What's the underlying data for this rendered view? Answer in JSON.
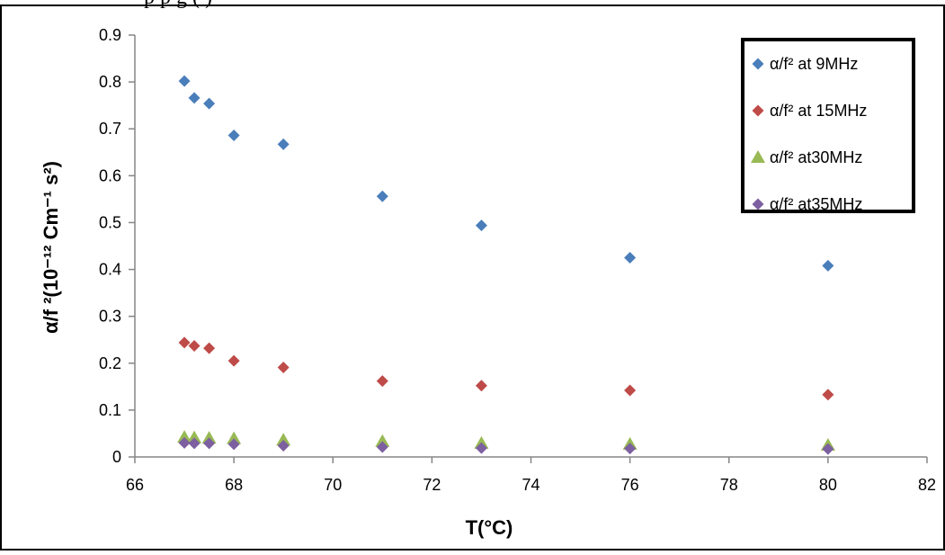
{
  "header_fragment": "p                                                       p                                            g (   )",
  "colors": {
    "series_9": "#4a7ebb",
    "series_15": "#be4b48",
    "series_30": "#98b954",
    "series_35": "#7d60a0"
  },
  "chart_data": {
    "type": "scatter",
    "title": "",
    "xlabel": "T(°C)",
    "ylabel": "α/f ²(10⁻¹² Cm⁻¹ s²)",
    "xlim": [
      66,
      82
    ],
    "ylim": [
      0,
      0.9
    ],
    "x_ticks": [
      66,
      68,
      70,
      72,
      74,
      76,
      78,
      80,
      82
    ],
    "y_ticks": [
      0,
      0.1,
      0.2,
      0.3,
      0.4,
      0.5,
      0.6,
      0.7,
      0.8,
      0.9
    ],
    "x_tick_labels": [
      "66",
      "68",
      "70",
      "72",
      "74",
      "76",
      "78",
      "80",
      "82"
    ],
    "y_tick_labels": [
      "0",
      "0.1",
      "0.2",
      "0.3",
      "0.4",
      "0.5",
      "0.6",
      "0.7",
      "0.8",
      "0.9"
    ],
    "grid": false,
    "legend_position": "top-right",
    "series": [
      {
        "name": "α/f² at 9MHz",
        "marker": "diamond",
        "color": "#4a7ebb",
        "x": [
          67,
          67.2,
          67.5,
          68,
          69,
          71,
          73,
          76,
          80
        ],
        "y": [
          0.802,
          0.766,
          0.754,
          0.686,
          0.667,
          0.556,
          0.494,
          0.425,
          0.408
        ]
      },
      {
        "name": "α/f² at 15MHz",
        "marker": "diamond",
        "color": "#be4b48",
        "x": [
          67,
          67.2,
          67.5,
          68,
          69,
          71,
          73,
          76,
          80
        ],
        "y": [
          0.244,
          0.237,
          0.232,
          0.205,
          0.191,
          0.162,
          0.152,
          0.142,
          0.133
        ]
      },
      {
        "name": "α/f² at30MHz",
        "marker": "triangle",
        "color": "#98b954",
        "x": [
          67,
          67.2,
          67.5,
          68,
          69,
          71,
          73,
          76,
          80
        ],
        "y": [
          0.042,
          0.041,
          0.04,
          0.039,
          0.036,
          0.033,
          0.029,
          0.027,
          0.025
        ]
      },
      {
        "name": "α/f² at35MHz",
        "marker": "diamond",
        "color": "#7d60a0",
        "x": [
          67,
          67.2,
          67.5,
          68,
          69,
          71,
          73,
          76,
          80
        ],
        "y": [
          0.03,
          0.029,
          0.029,
          0.027,
          0.024,
          0.021,
          0.019,
          0.018,
          0.017
        ]
      }
    ]
  }
}
